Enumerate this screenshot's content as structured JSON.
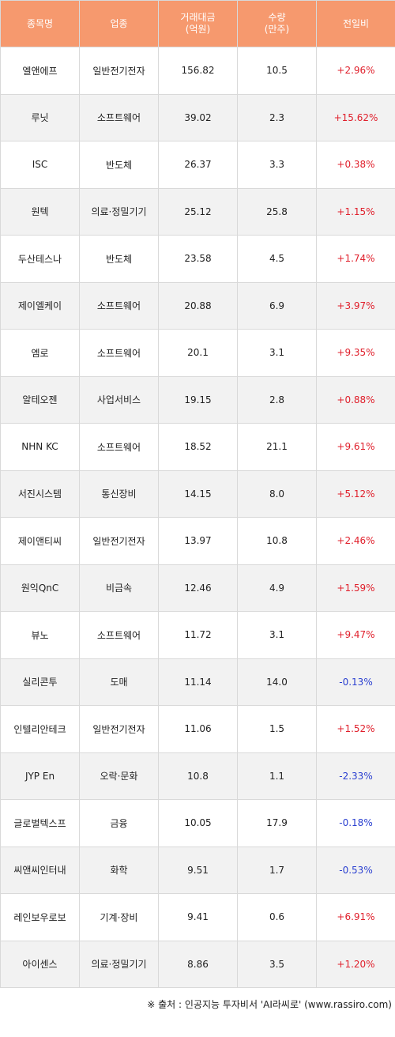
{
  "header": {
    "name": "종목명",
    "sector": "업종",
    "amount_line1": "거래대금",
    "amount_line2": "(억원)",
    "volume_line1": "수량",
    "volume_line2": "(만주)",
    "change": "전일비"
  },
  "rows": [
    {
      "name": "엘앤에프",
      "sector": "일반전기전자",
      "amount": "156.82",
      "volume": "10.5",
      "change": "+2.96%",
      "dir": "up"
    },
    {
      "name": "루닛",
      "sector": "소프트웨어",
      "amount": "39.02",
      "volume": "2.3",
      "change": "+15.62%",
      "dir": "up"
    },
    {
      "name": "ISC",
      "sector": "반도체",
      "amount": "26.37",
      "volume": "3.3",
      "change": "+0.38%",
      "dir": "up"
    },
    {
      "name": "원텍",
      "sector": "의료·정밀기기",
      "amount": "25.12",
      "volume": "25.8",
      "change": "+1.15%",
      "dir": "up"
    },
    {
      "name": "두산테스나",
      "sector": "반도체",
      "amount": "23.58",
      "volume": "4.5",
      "change": "+1.74%",
      "dir": "up"
    },
    {
      "name": "제이엘케이",
      "sector": "소프트웨어",
      "amount": "20.88",
      "volume": "6.9",
      "change": "+3.97%",
      "dir": "up"
    },
    {
      "name": "엠로",
      "sector": "소프트웨어",
      "amount": "20.1",
      "volume": "3.1",
      "change": "+9.35%",
      "dir": "up"
    },
    {
      "name": "알테오젠",
      "sector": "사업서비스",
      "amount": "19.15",
      "volume": "2.8",
      "change": "+0.88%",
      "dir": "up"
    },
    {
      "name": "NHN KC",
      "sector": "소프트웨어",
      "amount": "18.52",
      "volume": "21.1",
      "change": "+9.61%",
      "dir": "up"
    },
    {
      "name": "서진시스템",
      "sector": "통신장비",
      "amount": "14.15",
      "volume": "8.0",
      "change": "+5.12%",
      "dir": "up"
    },
    {
      "name": "제이앤티씨",
      "sector": "일반전기전자",
      "amount": "13.97",
      "volume": "10.8",
      "change": "+2.46%",
      "dir": "up"
    },
    {
      "name": "원익QnC",
      "sector": "비금속",
      "amount": "12.46",
      "volume": "4.9",
      "change": "+1.59%",
      "dir": "up"
    },
    {
      "name": "뷰노",
      "sector": "소프트웨어",
      "amount": "11.72",
      "volume": "3.1",
      "change": "+9.47%",
      "dir": "up"
    },
    {
      "name": "실리콘투",
      "sector": "도매",
      "amount": "11.14",
      "volume": "14.0",
      "change": "-0.13%",
      "dir": "down"
    },
    {
      "name": "인텔리안테크",
      "sector": "일반전기전자",
      "amount": "11.06",
      "volume": "1.5",
      "change": "+1.52%",
      "dir": "up"
    },
    {
      "name": "JYP En",
      "sector": "오락·문화",
      "amount": "10.8",
      "volume": "1.1",
      "change": "-2.33%",
      "dir": "down"
    },
    {
      "name": "글로벌텍스프",
      "sector": "금융",
      "amount": "10.05",
      "volume": "17.9",
      "change": "-0.18%",
      "dir": "down"
    },
    {
      "name": "씨앤씨인터내",
      "sector": "화학",
      "amount": "9.51",
      "volume": "1.7",
      "change": "-0.53%",
      "dir": "down"
    },
    {
      "name": "레인보우로보",
      "sector": "기계·장비",
      "amount": "9.41",
      "volume": "0.6",
      "change": "+6.91%",
      "dir": "up"
    },
    {
      "name": "아이센스",
      "sector": "의료·정밀기기",
      "amount": "8.86",
      "volume": "3.5",
      "change": "+1.20%",
      "dir": "up"
    }
  ],
  "source": "※ 출처 : 인공지능 투자비서 'AI라씨로' (www.rassiro.com)",
  "colors": {
    "header_bg": "#f6996e",
    "positive": "#e0202c",
    "negative": "#2a3fd0",
    "stripe": "#f2f2f2"
  }
}
